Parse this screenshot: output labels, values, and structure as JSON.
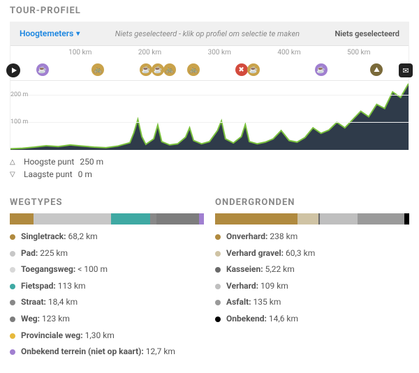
{
  "profile": {
    "section_title": "TOUR-PROFIEL",
    "dropdown_label": "Hoogtemeters",
    "center_hint": "Niets geselecteerd - klik op profiel om selectie te maken",
    "right_label": "Niets geselecteerd",
    "xaxis": {
      "ticks": [
        {
          "pos_pct": 17.5,
          "label": "100 km"
        },
        {
          "pos_pct": 35.0,
          "label": "200 km"
        },
        {
          "pos_pct": 52.5,
          "label": "300 km"
        },
        {
          "pos_pct": 70.0,
          "label": "400 km"
        },
        {
          "pos_pct": 87.5,
          "label": "500 km"
        }
      ]
    },
    "markers": [
      {
        "pos_pct": 8,
        "color": "#a07fd0",
        "glyph": "☕"
      },
      {
        "pos_pct": 22,
        "color": "#c9a24a",
        "glyph": "🚲"
      },
      {
        "pos_pct": 34,
        "color": "#c9a24a",
        "glyph": "☕"
      },
      {
        "pos_pct": 37,
        "color": "#c9a24a",
        "glyph": "☕"
      },
      {
        "pos_pct": 40,
        "color": "#c9a24a",
        "glyph": "🚲"
      },
      {
        "pos_pct": 46,
        "color": "#c9a24a",
        "glyph": "🚲"
      },
      {
        "pos_pct": 58,
        "color": "#d34b3d",
        "glyph": "✖"
      },
      {
        "pos_pct": 61,
        "color": "#c9a24a",
        "glyph": "☕"
      },
      {
        "pos_pct": 78,
        "color": "#a07fd0",
        "glyph": "☕"
      },
      {
        "pos_pct": 92,
        "color": "#7a6a3a",
        "glyph": "⛰"
      }
    ],
    "elevation": {
      "ylim_m": 250,
      "yticks": [
        {
          "value": 100,
          "label": "100 m"
        },
        {
          "value": 200,
          "label": "200 m"
        }
      ],
      "fill_color": "#2f3b4a",
      "line_color": "#7ac13d",
      "line_width": 2,
      "points": [
        [
          0,
          4
        ],
        [
          3,
          6
        ],
        [
          6,
          10
        ],
        [
          9,
          15
        ],
        [
          12,
          12
        ],
        [
          15,
          18
        ],
        [
          18,
          14
        ],
        [
          21,
          10
        ],
        [
          24,
          8
        ],
        [
          27,
          14
        ],
        [
          30,
          26
        ],
        [
          31,
          62
        ],
        [
          32,
          110
        ],
        [
          33,
          48
        ],
        [
          34,
          20
        ],
        [
          36,
          40
        ],
        [
          37,
          90
        ],
        [
          38,
          30
        ],
        [
          40,
          18
        ],
        [
          42,
          22
        ],
        [
          44,
          46
        ],
        [
          45,
          80
        ],
        [
          46,
          34
        ],
        [
          48,
          22
        ],
        [
          50,
          30
        ],
        [
          52,
          70
        ],
        [
          53,
          105
        ],
        [
          54,
          40
        ],
        [
          56,
          25
        ],
        [
          58,
          48
        ],
        [
          59,
          92
        ],
        [
          60,
          30
        ],
        [
          62,
          22
        ],
        [
          64,
          28
        ],
        [
          66,
          40
        ],
        [
          68,
          70
        ],
        [
          70,
          34
        ],
        [
          72,
          28
        ],
        [
          74,
          45
        ],
        [
          76,
          80
        ],
        [
          78,
          60
        ],
        [
          80,
          72
        ],
        [
          82,
          100
        ],
        [
          84,
          80
        ],
        [
          86,
          110
        ],
        [
          88,
          140
        ],
        [
          90,
          120
        ],
        [
          92,
          165
        ],
        [
          94,
          150
        ],
        [
          96,
          210
        ],
        [
          98,
          190
        ],
        [
          100,
          240
        ]
      ]
    },
    "stats": {
      "highest_label": "Hoogste punt",
      "highest_value": "250 m",
      "lowest_label": "Laagste punt",
      "lowest_value": "0 m"
    }
  },
  "waytypes": {
    "section_title": "WEGTYPES",
    "total_km": 562.3,
    "items": [
      {
        "label": "Singletrack",
        "value": "68,2 km",
        "km": 68.2,
        "color": "#b08a3f"
      },
      {
        "label": "Pad",
        "value": "225 km",
        "km": 225,
        "color": "#c7c7c7"
      },
      {
        "label": "Toegangsweg",
        "value": "< 100 m",
        "km": 0.1,
        "color": "#d8d8d8"
      },
      {
        "label": "Fietspad",
        "value": "113 km",
        "km": 113,
        "color": "#3fa9a3"
      },
      {
        "label": "Straat",
        "value": "18,4 km",
        "km": 18.4,
        "color": "#888888"
      },
      {
        "label": "Weg",
        "value": "123 km",
        "km": 123,
        "color": "#7d7d7d"
      },
      {
        "label": "Provinciale weg",
        "value": "1,30 km",
        "km": 1.3,
        "color": "#e7b93c"
      },
      {
        "label": "Onbekend terrein (niet op kaart)",
        "value": "12,7 km",
        "km": 12.7,
        "color": "#a07fd0"
      }
    ]
  },
  "surfaces": {
    "section_title": "ONDERGRONDEN",
    "total_km": 562.1,
    "items": [
      {
        "label": "Onverhard",
        "value": "238 km",
        "km": 238,
        "color": "#b08a3f"
      },
      {
        "label": "Verhard gravel",
        "value": "60,3 km",
        "km": 60.3,
        "color": "#cfc3a4"
      },
      {
        "label": "Kasseien",
        "value": "5,22 km",
        "km": 5.22,
        "color": "#6a6a6a"
      },
      {
        "label": "Verhard",
        "value": "109 km",
        "km": 109,
        "color": "#bfbfbf"
      },
      {
        "label": "Asfalt",
        "value": "135 km",
        "km": 135,
        "color": "#9a9a9a"
      },
      {
        "label": "Onbekend",
        "value": "14,6 km",
        "km": 14.6,
        "color": "#000000"
      }
    ]
  }
}
